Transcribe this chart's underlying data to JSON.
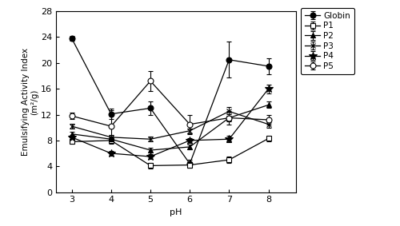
{
  "x": [
    3,
    4,
    5,
    6,
    7,
    8
  ],
  "series": {
    "Globin": {
      "y": [
        23.8,
        12.1,
        13.0,
        4.4,
        20.5,
        19.5
      ],
      "yerr": [
        0.4,
        0.8,
        1.0,
        0.6,
        2.8,
        1.2
      ],
      "marker": "o",
      "markerfacecolor": "black",
      "linestyle": "-",
      "color": "black",
      "markersize": 5,
      "fillstyle": "full"
    },
    "P1": {
      "y": [
        7.8,
        8.0,
        4.1,
        4.2,
        5.0,
        8.3
      ],
      "yerr": [
        0.3,
        0.5,
        0.4,
        0.4,
        0.5,
        0.4
      ],
      "marker": "s",
      "markerfacecolor": "white",
      "linestyle": "-",
      "color": "black",
      "markersize": 5,
      "fillstyle": "none"
    },
    "P2": {
      "y": [
        9.0,
        8.2,
        6.5,
        7.0,
        11.5,
        13.5
      ],
      "yerr": [
        0.3,
        0.4,
        0.4,
        0.4,
        0.6,
        0.5
      ],
      "marker": "^",
      "markerfacecolor": "black",
      "linestyle": "-",
      "color": "black",
      "markersize": 5,
      "fillstyle": "full"
    },
    "P3": {
      "y": [
        10.2,
        8.5,
        8.2,
        9.5,
        12.5,
        10.5
      ],
      "yerr": [
        0.4,
        0.4,
        0.4,
        0.4,
        0.7,
        0.5
      ],
      "marker": "x",
      "markerfacecolor": "black",
      "linestyle": "-",
      "color": "black",
      "markersize": 5,
      "fillstyle": "full"
    },
    "P4": {
      "y": [
        8.5,
        6.0,
        5.5,
        8.0,
        8.2,
        16.0
      ],
      "yerr": [
        0.3,
        0.4,
        0.4,
        0.4,
        0.5,
        0.7
      ],
      "marker": "*",
      "markerfacecolor": "black",
      "linestyle": "-",
      "color": "black",
      "markersize": 7,
      "fillstyle": "full"
    },
    "P5": {
      "y": [
        11.8,
        10.2,
        17.2,
        10.5,
        11.5,
        11.2
      ],
      "yerr": [
        0.5,
        2.5,
        1.5,
        1.5,
        1.0,
        0.8
      ],
      "marker": "o",
      "markerfacecolor": "white",
      "linestyle": "-",
      "color": "black",
      "markersize": 5,
      "fillstyle": "none"
    }
  },
  "xlabel": "pH",
  "ylabel": "Emulsifying Activity Index\n(m²/g)",
  "xlim": [
    2.6,
    8.7
  ],
  "ylim": [
    0,
    28
  ],
  "yticks": [
    0,
    4,
    8,
    12,
    16,
    20,
    24,
    28
  ],
  "xticks": [
    3,
    4,
    5,
    6,
    7,
    8
  ],
  "background_color": "#ffffff"
}
